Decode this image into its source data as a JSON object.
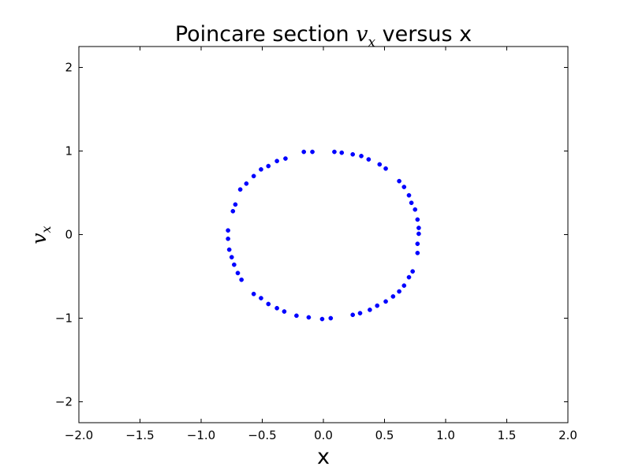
{
  "chart_data": {
    "type": "scatter",
    "title_prefix": "Poincare section ",
    "title_math_base": "v",
    "title_math_sub": "x",
    "title_suffix": " versus x",
    "xlabel": "x",
    "ylabel_base": "v",
    "ylabel_sub": "x",
    "xlim": [
      -2.0,
      2.0
    ],
    "ylim": [
      -2.25,
      2.25
    ],
    "x_ticks": [
      -2.0,
      -1.5,
      -1.0,
      -0.5,
      0.0,
      0.5,
      1.0,
      1.5,
      2.0
    ],
    "x_tick_labels": [
      "−2.0",
      "−1.5",
      "−1.0",
      "−0.5",
      "0.0",
      "0.5",
      "1.0",
      "1.5",
      "2.0"
    ],
    "y_ticks": [
      -2,
      -1,
      0,
      1,
      2
    ],
    "y_tick_labels": [
      "−2",
      "−1",
      "0",
      "1",
      "2"
    ],
    "grid": false,
    "marker_color": "#0000ff",
    "series": [
      {
        "points": [
          [
            -0.16,
            0.99
          ],
          [
            -0.09,
            0.99
          ],
          [
            0.09,
            0.99
          ],
          [
            0.15,
            0.98
          ],
          [
            0.24,
            0.96
          ],
          [
            0.31,
            0.94
          ],
          [
            0.37,
            0.9
          ],
          [
            0.46,
            0.84
          ],
          [
            0.51,
            0.79
          ],
          [
            0.62,
            0.64
          ],
          [
            0.66,
            0.57
          ],
          [
            0.7,
            0.47
          ],
          [
            0.72,
            0.38
          ],
          [
            0.75,
            0.3
          ],
          [
            0.77,
            0.18
          ],
          [
            0.78,
            0.08
          ],
          [
            0.78,
            0.01
          ],
          [
            0.77,
            -0.11
          ],
          [
            0.77,
            -0.22
          ],
          [
            0.73,
            -0.44
          ],
          [
            0.7,
            -0.51
          ],
          [
            0.66,
            -0.61
          ],
          [
            0.62,
            -0.68
          ],
          [
            0.57,
            -0.74
          ],
          [
            0.51,
            -0.8
          ],
          [
            0.44,
            -0.85
          ],
          [
            0.38,
            -0.9
          ],
          [
            0.3,
            -0.94
          ],
          [
            0.24,
            -0.96
          ],
          [
            0.06,
            -1.0
          ],
          [
            -0.01,
            -1.01
          ],
          [
            -0.12,
            -0.99
          ],
          [
            -0.22,
            -0.97
          ],
          [
            -0.32,
            -0.92
          ],
          [
            -0.38,
            -0.88
          ],
          [
            -0.45,
            -0.83
          ],
          [
            -0.51,
            -0.76
          ],
          [
            -0.57,
            -0.71
          ],
          [
            -0.67,
            -0.54
          ],
          [
            -0.7,
            -0.46
          ],
          [
            -0.73,
            -0.36
          ],
          [
            -0.75,
            -0.27
          ],
          [
            -0.77,
            -0.18
          ],
          [
            -0.78,
            -0.05
          ],
          [
            -0.78,
            0.05
          ],
          [
            -0.74,
            0.28
          ],
          [
            -0.72,
            0.36
          ],
          [
            -0.68,
            0.54
          ],
          [
            -0.63,
            0.61
          ],
          [
            -0.57,
            0.7
          ],
          [
            -0.51,
            0.78
          ],
          [
            -0.45,
            0.82
          ],
          [
            -0.38,
            0.88
          ],
          [
            -0.31,
            0.91
          ]
        ]
      }
    ]
  }
}
